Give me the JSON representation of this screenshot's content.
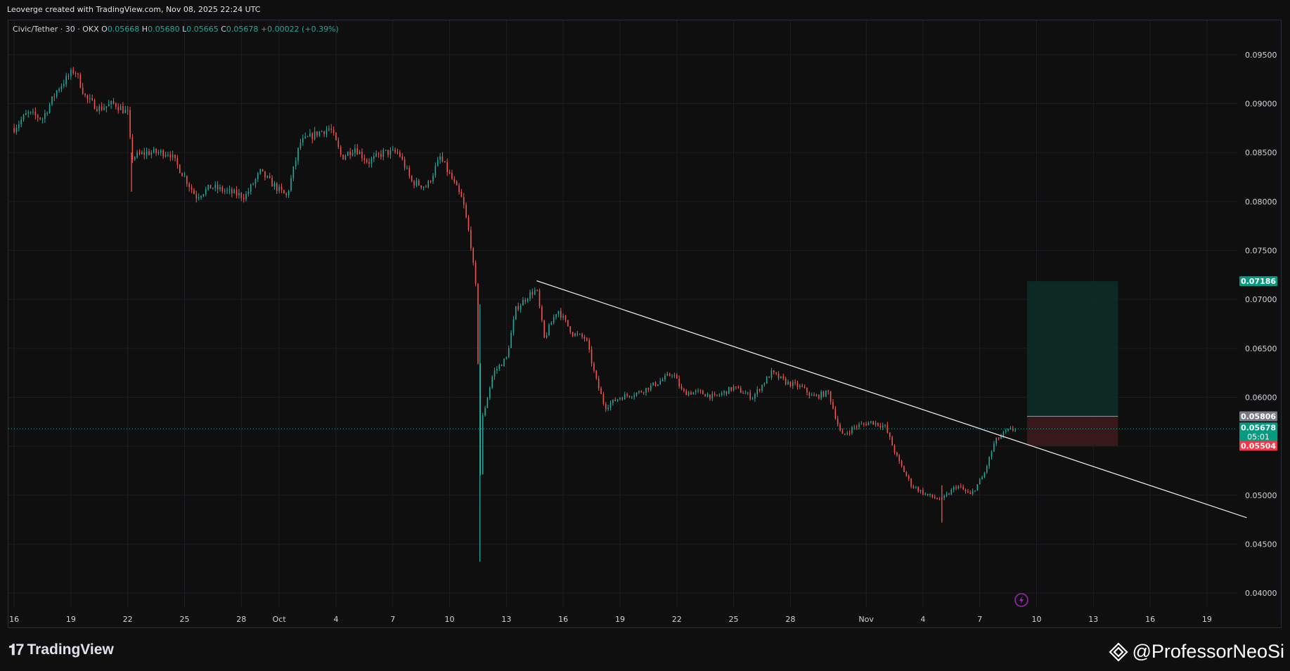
{
  "header": {
    "credit": "Leoverge created with TradingView.com, Nov 08, 2025 22:24 UTC"
  },
  "legend": {
    "symbol": "Civic/Tether · 30 · OKX",
    "open_label": "O",
    "open": "0.05668",
    "high_label": "H",
    "high": "0.05680",
    "low_label": "L",
    "low": "0.05665",
    "close_label": "C",
    "close": "0.05678",
    "change": "+0.00022 (+0.39%)"
  },
  "footer": {
    "brand": "TradingView",
    "watermark": "@ProfessorNeoSi"
  },
  "colors": {
    "background": "#0f0f0f",
    "up": "#26a69a",
    "down": "#ef5350",
    "grid": "#1c1f26",
    "trendline": "#e6e6e6",
    "target_zone": "#0e2b26",
    "stop_zone": "#3a1a1c",
    "target_badge": "#089981",
    "stop_badge": "#f23645",
    "entry_badge": "#787b86",
    "current_badge": "#089981",
    "event_icon": "#9c27b0"
  },
  "chart_data": {
    "type": "candlestick",
    "symbol": "Civic/Tether",
    "interval": "30",
    "exchange": "OKX",
    "ylim": [
      0.0385,
      0.0985
    ],
    "y_axis_position": "right",
    "y_ticks": [
      "0.09500",
      "0.09000",
      "0.08500",
      "0.08000",
      "0.07500",
      "0.07000",
      "0.06500",
      "0.06000",
      "0.05500",
      "0.05000",
      "0.04500",
      "0.04000"
    ],
    "x_ticks": [
      {
        "label": "16",
        "day": 0
      },
      {
        "label": "19",
        "day": 3
      },
      {
        "label": "22",
        "day": 6
      },
      {
        "label": "25",
        "day": 9
      },
      {
        "label": "28",
        "day": 12
      },
      {
        "label": "Oct",
        "day": 14
      },
      {
        "label": "4",
        "day": 17
      },
      {
        "label": "7",
        "day": 20
      },
      {
        "label": "10",
        "day": 23
      },
      {
        "label": "13",
        "day": 26
      },
      {
        "label": "16",
        "day": 29
      },
      {
        "label": "19",
        "day": 32
      },
      {
        "label": "22",
        "day": 35
      },
      {
        "label": "25",
        "day": 38
      },
      {
        "label": "28",
        "day": 41
      },
      {
        "label": "Nov",
        "day": 45
      },
      {
        "label": "4",
        "day": 48
      },
      {
        "label": "7",
        "day": 51
      },
      {
        "label": "10",
        "day": 54
      },
      {
        "label": "13",
        "day": 57
      },
      {
        "label": "16",
        "day": 60
      },
      {
        "label": "19",
        "day": 63
      }
    ],
    "x_range_days": [
      -0.3,
      64.6
    ],
    "price_path": [
      [
        0.0,
        0.0875
      ],
      [
        0.7,
        0.089
      ],
      [
        1.5,
        0.0885
      ],
      [
        2.3,
        0.0915
      ],
      [
        3.2,
        0.0935
      ],
      [
        3.8,
        0.0905
      ],
      [
        4.5,
        0.0895
      ],
      [
        5.3,
        0.09
      ],
      [
        6.0,
        0.089
      ],
      [
        6.2,
        0.0845
      ],
      [
        7.0,
        0.085
      ],
      [
        8.2,
        0.085
      ],
      [
        9.0,
        0.0825
      ],
      [
        9.6,
        0.0805
      ],
      [
        10.4,
        0.0815
      ],
      [
        11.3,
        0.081
      ],
      [
        12.2,
        0.0805
      ],
      [
        13.0,
        0.083
      ],
      [
        13.8,
        0.0815
      ],
      [
        14.4,
        0.0805
      ],
      [
        15.1,
        0.086
      ],
      [
        16.0,
        0.087
      ],
      [
        16.7,
        0.0875
      ],
      [
        17.3,
        0.0845
      ],
      [
        18.0,
        0.0855
      ],
      [
        18.7,
        0.084
      ],
      [
        19.5,
        0.085
      ],
      [
        20.3,
        0.085
      ],
      [
        21.0,
        0.082
      ],
      [
        21.8,
        0.0815
      ],
      [
        22.5,
        0.0845
      ],
      [
        23.2,
        0.082
      ],
      [
        23.7,
        0.08
      ],
      [
        24.1,
        0.076
      ],
      [
        24.45,
        0.07
      ],
      [
        24.6,
        0.051
      ],
      [
        24.75,
        0.058
      ],
      [
        25.3,
        0.0625
      ],
      [
        26.0,
        0.064
      ],
      [
        26.5,
        0.069
      ],
      [
        27.2,
        0.0705
      ],
      [
        27.6,
        0.071
      ],
      [
        28.0,
        0.066
      ],
      [
        28.7,
        0.069
      ],
      [
        29.5,
        0.0665
      ],
      [
        30.2,
        0.066
      ],
      [
        30.7,
        0.062
      ],
      [
        31.2,
        0.059
      ],
      [
        32.0,
        0.06
      ],
      [
        33.0,
        0.0605
      ],
      [
        34.0,
        0.0615
      ],
      [
        34.8,
        0.0625
      ],
      [
        35.3,
        0.0605
      ],
      [
        36.2,
        0.0605
      ],
      [
        37.0,
        0.06
      ],
      [
        38.0,
        0.061
      ],
      [
        39.0,
        0.06
      ],
      [
        40.0,
        0.0625
      ],
      [
        40.8,
        0.0615
      ],
      [
        41.6,
        0.061
      ],
      [
        42.2,
        0.06
      ],
      [
        43.0,
        0.0605
      ],
      [
        43.7,
        0.056
      ],
      [
        44.4,
        0.057
      ],
      [
        45.3,
        0.0575
      ],
      [
        46.0,
        0.057
      ],
      [
        46.7,
        0.0535
      ],
      [
        47.4,
        0.051
      ],
      [
        48.2,
        0.05
      ],
      [
        49.0,
        0.0495
      ],
      [
        49.8,
        0.051
      ],
      [
        50.5,
        0.05
      ],
      [
        51.2,
        0.052
      ],
      [
        51.8,
        0.0555
      ],
      [
        52.4,
        0.0565
      ],
      [
        52.9,
        0.0568
      ]
    ],
    "spikes": [
      {
        "day": 6.2,
        "high": 0.085,
        "low": 0.081
      },
      {
        "day": 24.6,
        "high": 0.0695,
        "low": 0.0432
      },
      {
        "day": 49.0,
        "high": 0.051,
        "low": 0.0472
      }
    ],
    "trendline": {
      "from": {
        "day": 27.6,
        "price": 0.0719
      },
      "to": {
        "day": 65.1,
        "price": 0.0477
      }
    },
    "position": {
      "from_day": 53.5,
      "to_day": 58.3,
      "target": 0.07186,
      "entry": 0.05806,
      "stop": 0.05504
    },
    "current_price": 0.05678,
    "price_labels": {
      "target": "0.07186",
      "entry": "0.05806",
      "current": "0.05678",
      "countdown": "05:01",
      "stop": "0.05504"
    },
    "event_marker_day": 53.2,
    "grid": true
  }
}
